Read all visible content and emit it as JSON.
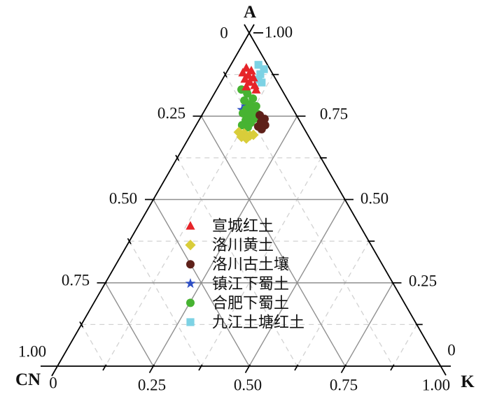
{
  "figure": {
    "background": "#ffffff",
    "axis_color": "#000000",
    "text_color": "#111111"
  },
  "chart_data": {
    "type": "scatter",
    "subtype": "ternary",
    "title": "",
    "vertices": {
      "top": {
        "label": "A"
      },
      "bottom_left": {
        "label": "CN"
      },
      "bottom_right": {
        "label": "K"
      }
    },
    "axes": {
      "left": {
        "meaning": "CN fraction (0 at top vertex to 1.00 at bottom-left vertex)",
        "tick_labels": [
          "0",
          "0.25",
          "0.50",
          "0.75",
          "1.00"
        ],
        "tick_values": [
          0,
          0.25,
          0.5,
          0.75,
          1.0
        ]
      },
      "right": {
        "meaning": "A fraction (1.00 at top vertex to 0 at bottom-right vertex)",
        "tick_labels": [
          "1.00",
          "0.75",
          "0.50",
          "0.25",
          "0"
        ],
        "tick_values": [
          1.0,
          0.75,
          0.5,
          0.25,
          0
        ]
      },
      "bottom": {
        "meaning": "K fraction (0 at bottom-left vertex to 1.00 at bottom-right vertex)",
        "tick_labels": [
          "0",
          "0.25",
          "0.50",
          "0.75",
          "1.00"
        ],
        "tick_values": [
          0,
          0.25,
          0.5,
          0.75,
          1.0
        ]
      }
    },
    "grid": {
      "major_values": [
        0.25,
        0.5,
        0.75
      ],
      "minor_values": [
        0.125,
        0.375,
        0.625,
        0.875
      ],
      "major_color": "#909090",
      "minor_color": "#d2d2d2",
      "minor_dashed": true
    },
    "legend": {
      "position": "inside-center-left",
      "frame": false
    },
    "series": [
      {
        "name": "宣城红土",
        "marker": "triangle",
        "color": "#e62429",
        "points_ACNK": [
          [
            0.895,
            0.06,
            0.045
          ],
          [
            0.887,
            0.051,
            0.062
          ],
          [
            0.881,
            0.076,
            0.043
          ],
          [
            0.874,
            0.065,
            0.061
          ],
          [
            0.866,
            0.056,
            0.078
          ],
          [
            0.862,
            0.08,
            0.058
          ],
          [
            0.853,
            0.072,
            0.075
          ],
          [
            0.843,
            0.064,
            0.093
          ],
          [
            0.839,
            0.088,
            0.073
          ],
          [
            0.83,
            0.067,
            0.103
          ]
        ]
      },
      {
        "name": "洛川黄土",
        "marker": "diamond",
        "color": "#d9cd3a",
        "points_ACNK": [
          [
            0.702,
            0.176,
            0.122
          ],
          [
            0.698,
            0.164,
            0.138
          ],
          [
            0.694,
            0.142,
            0.164
          ],
          [
            0.692,
            0.152,
            0.156
          ],
          [
            0.688,
            0.176,
            0.136
          ],
          [
            0.683,
            0.166,
            0.151
          ]
        ]
      },
      {
        "name": "洛川古土壤",
        "marker": "circle",
        "color": "#5e2019",
        "points_ACNK": [
          [
            0.753,
            0.096,
            0.151
          ],
          [
            0.742,
            0.089,
            0.169
          ],
          [
            0.732,
            0.103,
            0.165
          ],
          [
            0.723,
            0.097,
            0.18
          ],
          [
            0.719,
            0.117,
            0.164
          ],
          [
            0.711,
            0.112,
            0.177
          ]
        ]
      },
      {
        "name": "镇江下蜀土",
        "marker": "star",
        "color": "#2e4fc4",
        "points_ACNK": [
          [
            0.78,
            0.119,
            0.101
          ],
          [
            0.769,
            0.134,
            0.097
          ],
          [
            0.734,
            0.131,
            0.135
          ]
        ]
      },
      {
        "name": "合肥下蜀土",
        "marker": "circle",
        "color": "#47b332",
        "points_ACNK": [
          [
            0.83,
            0.105,
            0.065
          ],
          [
            0.818,
            0.096,
            0.086
          ],
          [
            0.803,
            0.089,
            0.108
          ],
          [
            0.797,
            0.114,
            0.089
          ],
          [
            0.786,
            0.105,
            0.109
          ],
          [
            0.78,
            0.092,
            0.128
          ],
          [
            0.771,
            0.122,
            0.107
          ],
          [
            0.765,
            0.11,
            0.125
          ],
          [
            0.759,
            0.137,
            0.104
          ],
          [
            0.757,
            0.1,
            0.143
          ],
          [
            0.751,
            0.126,
            0.123
          ],
          [
            0.742,
            0.116,
            0.142
          ],
          [
            0.738,
            0.14,
            0.122
          ],
          [
            0.73,
            0.131,
            0.139
          ],
          [
            0.723,
            0.157,
            0.12
          ],
          [
            0.717,
            0.145,
            0.138
          ]
        ]
      },
      {
        "name": "九江土塘红土",
        "marker": "square",
        "color": "#7dd2e4",
        "points_ACNK": [
          [
            0.904,
            0.024,
            0.072
          ],
          [
            0.891,
            0.016,
            0.093
          ],
          [
            0.876,
            0.033,
            0.091
          ],
          [
            0.86,
            0.046,
            0.094
          ],
          [
            0.851,
            0.042,
            0.107
          ]
        ]
      }
    ]
  }
}
